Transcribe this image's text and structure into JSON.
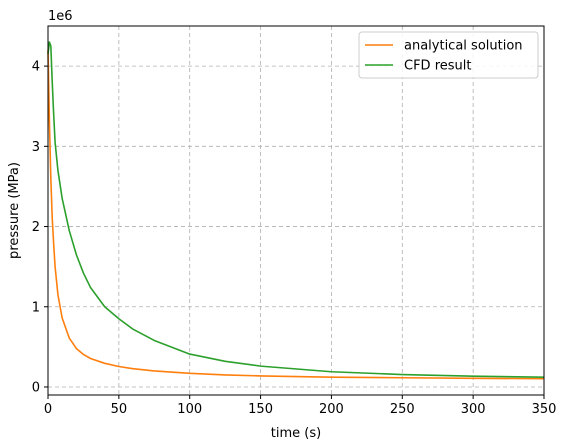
{
  "chart_data": {
    "type": "line",
    "title": "",
    "xlabel": "time (s)",
    "ylabel": "pressure (MPa)",
    "y_offset_label": "1e6",
    "xlim": [
      0,
      350
    ],
    "ylim": [
      -100000,
      4500000
    ],
    "x_ticks": [
      0,
      50,
      100,
      150,
      200,
      250,
      300,
      350
    ],
    "y_ticks": [
      0,
      1000000,
      2000000,
      3000000,
      4000000
    ],
    "y_tick_labels": [
      "0",
      "1",
      "2",
      "3",
      "4"
    ],
    "x_tick_labels": [
      "0",
      "50",
      "100",
      "150",
      "200",
      "250",
      "300",
      "350"
    ],
    "grid": true,
    "legend_position": "top-right",
    "series": [
      {
        "name": "analytical solution",
        "color": "#ff7f0e",
        "x": [
          0,
          1,
          2,
          3,
          4,
          5,
          7,
          10,
          15,
          20,
          25,
          30,
          40,
          50,
          60,
          75,
          100,
          125,
          150,
          200,
          250,
          300,
          350
        ],
        "y": [
          4200000,
          3300000,
          2600000,
          2100000,
          1780000,
          1500000,
          1150000,
          860000,
          610000,
          480000,
          405000,
          355000,
          295000,
          255000,
          228000,
          200000,
          170000,
          150000,
          138000,
          122000,
          115000,
          108000,
          103000
        ]
      },
      {
        "name": "CFD result",
        "color": "#2ca02c",
        "x": [
          0,
          1,
          2,
          3,
          4,
          5,
          7,
          10,
          15,
          20,
          25,
          30,
          40,
          50,
          60,
          75,
          100,
          125,
          150,
          200,
          250,
          300,
          350
        ],
        "y": [
          4150000,
          4300000,
          4250000,
          3800000,
          3400000,
          3050000,
          2700000,
          2350000,
          1950000,
          1650000,
          1420000,
          1240000,
          1000000,
          850000,
          720000,
          580000,
          410000,
          320000,
          260000,
          190000,
          155000,
          135000,
          122000
        ]
      }
    ]
  }
}
